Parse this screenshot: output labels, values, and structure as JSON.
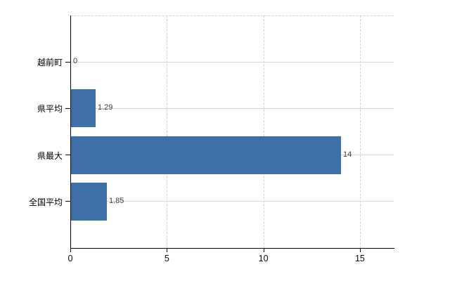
{
  "chart_data": {
    "type": "bar",
    "orientation": "horizontal",
    "title": "",
    "xlabel": "",
    "ylabel": "",
    "categories": [
      "越前町",
      "県平均",
      "県最大",
      "全国平均"
    ],
    "values": [
      0,
      1.29,
      14,
      1.85
    ],
    "value_labels": [
      "0",
      "1.29",
      "14",
      "1.85"
    ],
    "xticks": [
      0,
      5,
      10,
      15
    ],
    "xtick_labels": [
      "0",
      "5",
      "10",
      "15"
    ],
    "xlim": [
      0,
      16.75
    ],
    "grid": true,
    "legend_position": "none",
    "bar_color": "#3e6fa9",
    "h_gridline_color": "#d5dad5",
    "v_gridline_color": "#d2d2d2",
    "axis_color": "#000000",
    "category_label_color": "#000000",
    "value_label_color": "#3c3c3c",
    "background_color": "#ffffff"
  }
}
